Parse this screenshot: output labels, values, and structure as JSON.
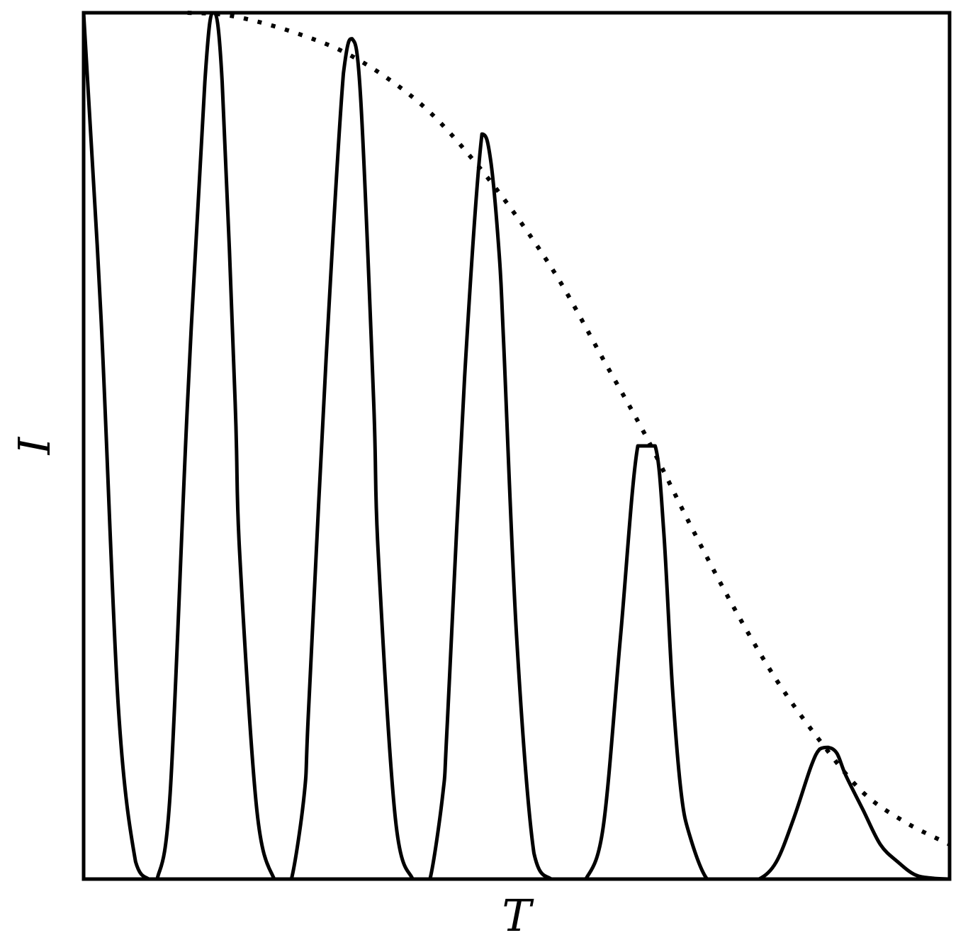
{
  "chart_data": {
    "type": "line",
    "title": "",
    "xlabel": "T",
    "ylabel": "I",
    "xlim": [
      0,
      1
    ],
    "ylim": [
      0,
      1
    ],
    "grid": false,
    "ticks": false,
    "legend": "none",
    "series": [
      {
        "style": "solid",
        "color": "#000000",
        "x": [
          0.0,
          0.02,
          0.04,
          0.06,
          0.075,
          0.08,
          0.085,
          0.1,
          0.12,
          0.14,
          0.15,
          0.16,
          0.175,
          0.18,
          0.2,
          0.22,
          0.23,
          0.24,
          0.255,
          0.26,
          0.28,
          0.3,
          0.31,
          0.32,
          0.335,
          0.34,
          0.36,
          0.38,
          0.39,
          0.4,
          0.415,
          0.42,
          0.44,
          0.46,
          0.47,
          0.48,
          0.485,
          0.5,
          0.52,
          0.54,
          0.56,
          0.57,
          0.58,
          0.6,
          0.62,
          0.64,
          0.66,
          0.67,
          0.68,
          0.69,
          0.7,
          0.72,
          0.74,
          0.76,
          0.78,
          0.8,
          0.82,
          0.84,
          0.85,
          0.86,
          0.87,
          0.88,
          0.9,
          0.92,
          0.94,
          0.96,
          0.98,
          1.0
        ],
        "y": [
          1.0,
          0.65,
          0.2,
          0.02,
          0.0,
          0.0,
          0.0,
          0.1,
          0.55,
          0.92,
          1.0,
          0.92,
          0.55,
          0.38,
          0.08,
          0.0,
          0.0,
          0.0,
          0.1,
          0.2,
          0.6,
          0.93,
          0.97,
          0.9,
          0.55,
          0.38,
          0.07,
          0.0,
          0.0,
          0.0,
          0.1,
          0.18,
          0.58,
          0.86,
          0.83,
          0.72,
          0.62,
          0.28,
          0.03,
          0.0,
          0.0,
          0.0,
          0.0,
          0.06,
          0.28,
          0.5,
          0.5,
          0.4,
          0.22,
          0.1,
          0.05,
          0.0,
          0.0,
          0.0,
          0.0,
          0.02,
          0.07,
          0.13,
          0.15,
          0.152,
          0.145,
          0.12,
          0.08,
          0.04,
          0.02,
          0.005,
          0.001,
          0.0
        ]
      },
      {
        "style": "dotted",
        "color": "#000000",
        "x": [
          0.12,
          0.16,
          0.2,
          0.25,
          0.3,
          0.35,
          0.4,
          0.45,
          0.5,
          0.55,
          0.6,
          0.65,
          0.7,
          0.75,
          0.8,
          0.85,
          0.9,
          0.95,
          1.0
        ],
        "y": [
          1.0,
          0.998,
          0.99,
          0.975,
          0.955,
          0.925,
          0.885,
          0.83,
          0.765,
          0.69,
          0.6,
          0.51,
          0.41,
          0.315,
          0.23,
          0.16,
          0.1,
          0.065,
          0.04
        ]
      }
    ]
  }
}
